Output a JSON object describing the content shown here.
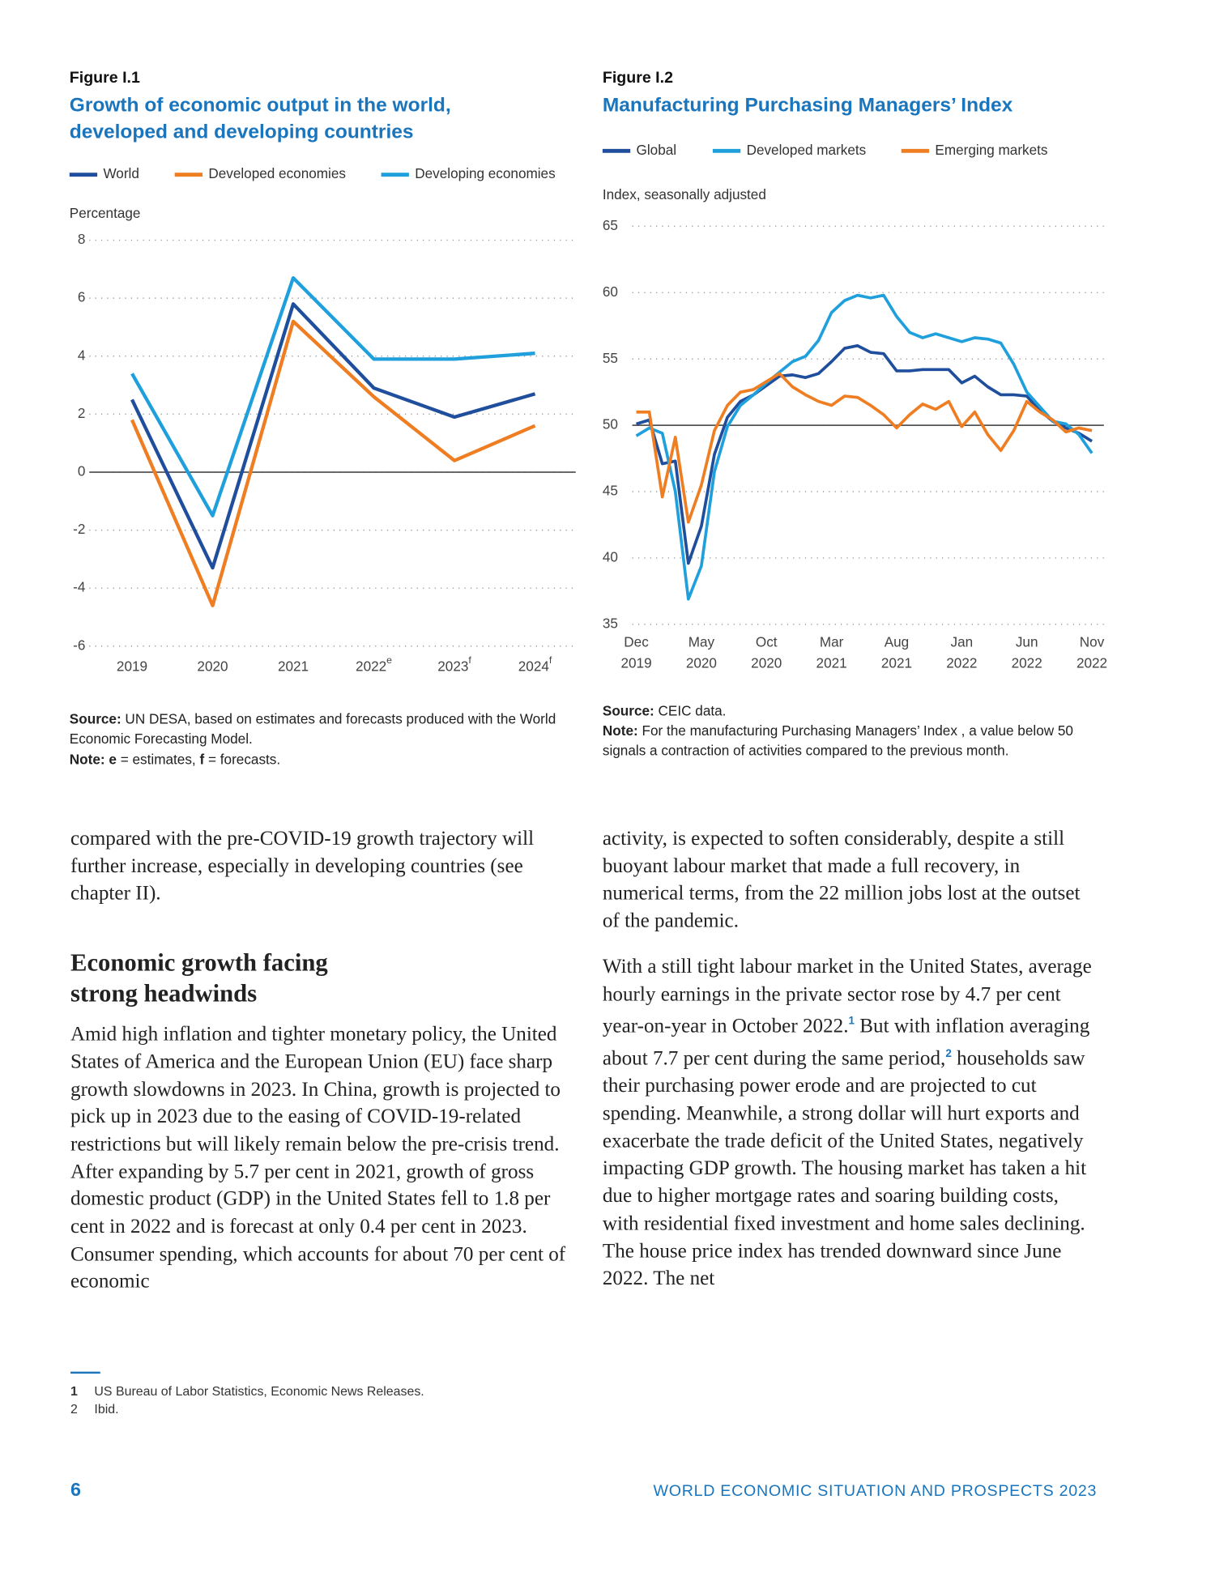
{
  "chart_data": [
    {
      "type": "line",
      "figure_label": "Figure I.1",
      "title": [
        "Growth of economic output in the world,",
        "developed and developing countries"
      ],
      "y_label": "Percentage",
      "categories": [
        "2019",
        "2020",
        "2021",
        "2022",
        "2023",
        "2024"
      ],
      "category_notes": [
        null,
        null,
        null,
        "e",
        "f",
        "f"
      ],
      "series": [
        {
          "name": "World",
          "color": "#1f4e9c",
          "values": [
            2.5,
            -3.3,
            5.8,
            2.9,
            1.9,
            2.7
          ]
        },
        {
          "name": "Developed economies",
          "color": "#ef7d22",
          "values": [
            1.8,
            -4.6,
            5.2,
            2.6,
            0.4,
            1.6
          ]
        },
        {
          "name": "Developing economies",
          "color": "#1fa0dc",
          "values": [
            3.4,
            -1.5,
            6.7,
            3.9,
            3.9,
            4.1
          ]
        }
      ],
      "ylim": [
        -6,
        8
      ],
      "yticks": [
        -6,
        -4,
        -2,
        0,
        2,
        4,
        6,
        8
      ],
      "hline": 0,
      "grid": true,
      "source": [
        {
          "b": "Source:"
        },
        {
          "t": " UN DESA, based on estimates and forecasts produced with the World Economic Forecasting Model."
        }
      ],
      "note": [
        {
          "b": "Note:"
        },
        {
          "t": " "
        },
        {
          "b": "e"
        },
        {
          "t": " = estimates, "
        },
        {
          "b": "f"
        },
        {
          "t": " = forecasts."
        }
      ]
    },
    {
      "type": "line",
      "figure_label": "Figure I.2",
      "title": [
        "Manufacturing Purchasing Managers’ Index"
      ],
      "y_label": "Index, seasonally adjusted",
      "x": [
        "2019-12",
        "2020-01",
        "2020-02",
        "2020-03",
        "2020-04",
        "2020-05",
        "2020-06",
        "2020-07",
        "2020-08",
        "2020-09",
        "2020-10",
        "2020-11",
        "2020-12",
        "2021-01",
        "2021-02",
        "2021-03",
        "2021-04",
        "2021-05",
        "2021-06",
        "2021-07",
        "2021-08",
        "2021-09",
        "2021-10",
        "2021-11",
        "2021-12",
        "2022-01",
        "2022-02",
        "2022-03",
        "2022-04",
        "2022-05",
        "2022-06",
        "2022-07",
        "2022-08",
        "2022-09",
        "2022-10",
        "2022-11"
      ],
      "xticks": [
        {
          "value": "2019-12",
          "label": [
            "Dec",
            "2019"
          ]
        },
        {
          "value": "2020-05",
          "label": [
            "May",
            "2020"
          ]
        },
        {
          "value": "2020-10",
          "label": [
            "Oct",
            "2020"
          ]
        },
        {
          "value": "2021-03",
          "label": [
            "Mar",
            "2021"
          ]
        },
        {
          "value": "2021-08",
          "label": [
            "Aug",
            "2021"
          ]
        },
        {
          "value": "2022-01",
          "label": [
            "Jan",
            "2022"
          ]
        },
        {
          "value": "2022-06",
          "label": [
            "Jun",
            "2022"
          ]
        },
        {
          "value": "2022-11",
          "label": [
            "Nov",
            "2022"
          ]
        }
      ],
      "series": [
        {
          "name": "Global",
          "color": "#1f4e9c",
          "values": [
            50.1,
            50.4,
            47.1,
            47.3,
            39.6,
            42.4,
            47.8,
            50.6,
            51.8,
            52.3,
            53.0,
            53.7,
            53.8,
            53.6,
            53.9,
            54.8,
            55.8,
            56.0,
            55.5,
            55.4,
            54.1,
            54.1,
            54.2,
            54.2,
            54.2,
            53.2,
            53.7,
            52.9,
            52.3,
            52.3,
            52.2,
            51.1,
            50.3,
            49.8,
            49.4,
            48.8
          ]
        },
        {
          "name": "Developed markets",
          "color": "#1fa0dc",
          "values": [
            49.2,
            49.8,
            49.4,
            45.0,
            36.9,
            39.4,
            46.5,
            49.9,
            51.5,
            52.3,
            53.2,
            54.0,
            54.8,
            55.2,
            56.4,
            58.5,
            59.4,
            59.8,
            59.6,
            59.8,
            58.2,
            57.0,
            56.6,
            56.9,
            56.6,
            56.3,
            56.6,
            56.5,
            56.2,
            54.6,
            52.5,
            51.4,
            50.3,
            50.1,
            49.3,
            47.9
          ]
        },
        {
          "name": "Emerging markets",
          "color": "#ef7d22",
          "values": [
            51.0,
            51.0,
            44.6,
            49.1,
            42.7,
            45.5,
            49.6,
            51.5,
            52.5,
            52.7,
            53.3,
            53.9,
            52.9,
            52.3,
            51.8,
            51.5,
            52.2,
            52.1,
            51.5,
            50.8,
            49.8,
            50.8,
            51.6,
            51.2,
            51.8,
            49.9,
            51.0,
            49.3,
            48.1,
            49.6,
            51.8,
            51.0,
            50.4,
            49.5,
            49.8,
            49.6
          ]
        }
      ],
      "ylim": [
        35,
        65
      ],
      "yticks": [
        35,
        40,
        45,
        50,
        55,
        60,
        65
      ],
      "hline": 50,
      "grid": true,
      "source": [
        {
          "b": "Source:"
        },
        {
          "t": " CEIC data."
        }
      ],
      "note": [
        {
          "b": "Note:"
        },
        {
          "t": " For the manufacturing Purchasing Managers’ Index , a value below 50 signals a contraction of activities compared to the previous month."
        }
      ]
    }
  ],
  "left_column": {
    "paragraph_1": "compared with the pre-COVID-19 growth trajectory will further increase, especially in developing countries (see chapter II).",
    "heading": "Economic growth facing strong headwinds",
    "paragraph_2": "Amid high inflation and tighter monetary policy, the United States of America and the European Union (EU) face sharp growth slowdowns in 2023. In China, growth is projected to pick up in 2023 due to the easing of COVID-19-related restrictions but will likely remain below the pre-crisis trend. After expanding by 5.7 per cent in 2021, growth of gross domestic product (GDP) in the United States fell to 1.8 per cent in 2022 and is forecast at only 0.4 per cent in 2023. Consumer spending, which accounts for about 70 per cent of economic"
  },
  "right_column": {
    "paragraph_1": "activity, is expected to soften considerably, despite a still buoyant labour market that made a full recovery, in numerical terms, from the 22 million jobs lost at the outset of the pandemic.",
    "paragraph_2": [
      {
        "t": "With a still tight labour market in the United States, average hourly earnings in the private sector rose by 4.7 per cent year-on-year in October 2022."
      },
      {
        "sup": "1"
      },
      {
        "t": " But with inflation averaging about 7.7 per cent during the same period,"
      },
      {
        "sup": "2"
      },
      {
        "t": " households saw their purchasing power erode and are projected to cut spending. Meanwhile, a strong dollar will hurt exports and exacerbate the trade deficit of the United States, negatively impacting GDP growth. The housing market has taken a hit due to higher mortgage rates and soaring building costs, with residential fixed investment and home sales declining. The house price index has trended downward since June 2022. The net"
      }
    ]
  },
  "footnotes": [
    {
      "number": "1",
      "text": "US Bureau of Labor Statistics, Economic News Releases."
    },
    {
      "number": "2",
      "text": "Ibid."
    }
  ],
  "footer": {
    "page_number": "6",
    "running_title": "WORLD ECONOMIC SITUATION AND PROSPECTS 2023"
  }
}
